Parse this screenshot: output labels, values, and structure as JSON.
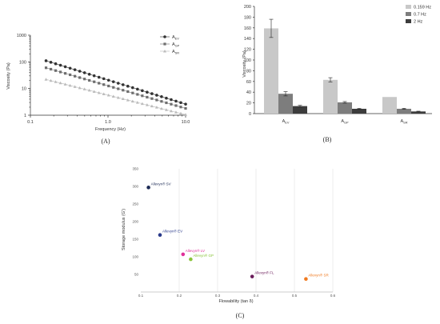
{
  "chart_data": [
    {
      "type": "line",
      "panel_label": "(A)",
      "xlabel": "Frequency (Hz)",
      "ylabel": "Viscosity (Pa)",
      "xscale": "log",
      "yscale": "log",
      "xlim": [
        0.1,
        10.0
      ],
      "ylim": [
        1,
        1000
      ],
      "xticks": [
        0.1,
        1.0,
        10.0
      ],
      "xtick_labels": [
        "0.1",
        "1.0",
        "10.0"
      ],
      "yticks": [
        1,
        10,
        100,
        1000
      ],
      "ytick_labels": [
        "1",
        "10",
        "100",
        "1000"
      ],
      "legend_position": "top-right",
      "series": [
        {
          "name": "AEV",
          "legend_main": "A",
          "legend_sub": "EV",
          "color": "#333333",
          "marker": "circle",
          "x_start": 0.159,
          "x_end": 10.0,
          "y_start": 110,
          "y_end": 2.6
        },
        {
          "name": "AGP",
          "legend_main": "A",
          "legend_sub": "GP",
          "color": "#6e6e6e",
          "marker": "square",
          "x_start": 0.159,
          "x_end": 10.0,
          "y_start": 60,
          "y_end": 1.8
        },
        {
          "name": "ASR",
          "legend_main": "A",
          "legend_sub": "SR",
          "color": "#bbbbbb",
          "marker": "triangle",
          "x_start": 0.159,
          "x_end": 10.0,
          "y_start": 22,
          "y_end": 1.05
        }
      ]
    },
    {
      "type": "bar",
      "panel_label": "(B)",
      "ylabel": "Viscosity (Pa)",
      "ylim": [
        0,
        200
      ],
      "yticks": [
        0,
        20,
        40,
        60,
        80,
        100,
        120,
        140,
        160,
        180,
        200
      ],
      "legend_position": "top-right",
      "categories": [
        {
          "main": "A",
          "sub": "EV"
        },
        {
          "main": "A",
          "sub": "GP"
        },
        {
          "main": "A",
          "sub": "SR"
        }
      ],
      "series": [
        {
          "name": "0.159 Hz",
          "color": "#c8c8c8",
          "values": [
            159,
            63,
            31
          ],
          "errors": [
            17,
            4,
            0
          ]
        },
        {
          "name": "0.7 Hz",
          "color": "#7d7d7d",
          "values": [
            37,
            21,
            9
          ],
          "errors": [
            4,
            1.5,
            1
          ]
        },
        {
          "name": "2 Hz",
          "color": "#3c3c3c",
          "values": [
            14,
            9,
            4
          ],
          "errors": [
            1.5,
            0.8,
            0.5
          ]
        }
      ]
    },
    {
      "type": "scatter",
      "panel_label": "(C)",
      "xlabel": "Flowability (tan δ)",
      "ylabel": "Storage modulus (G')",
      "xlim": [
        0.1,
        0.6
      ],
      "ylim": [
        0,
        350
      ],
      "xticks": [
        0.1,
        0.2,
        0.3,
        0.4,
        0.5,
        0.6
      ],
      "yticks": [
        50,
        100,
        150,
        200,
        250,
        300,
        350
      ],
      "points": [
        {
          "label": "Allevyn® SV",
          "x": 0.12,
          "y": 297,
          "color": "#1c2a55"
        },
        {
          "label": "Allevyn® EV",
          "x": 0.15,
          "y": 162,
          "color": "#2a3a8a"
        },
        {
          "label": "Allevyn® LV",
          "x": 0.21,
          "y": 107,
          "color": "#e0309a"
        },
        {
          "label": "Allevyn® GP",
          "x": 0.23,
          "y": 93,
          "color": "#8ac43a"
        },
        {
          "label": "Allevyn® FL",
          "x": 0.39,
          "y": 44,
          "color": "#6a1b5a"
        },
        {
          "label": "Allevyn® SR",
          "x": 0.53,
          "y": 37,
          "color": "#f07a20"
        }
      ]
    }
  ]
}
